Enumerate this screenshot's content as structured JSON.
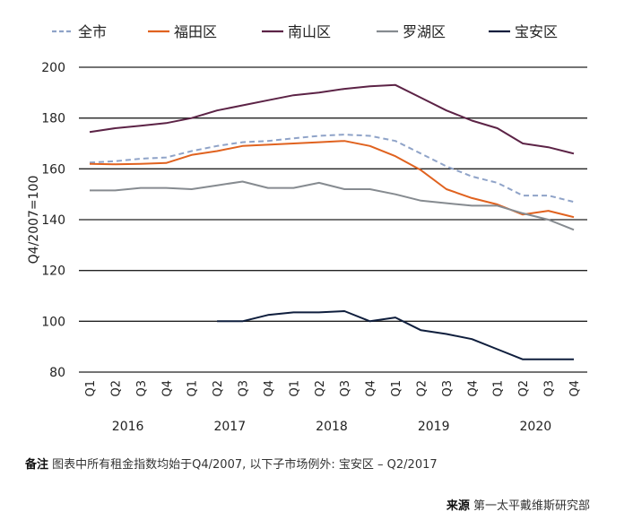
{
  "chart_data": {
    "type": "line",
    "ylabel": "Q4/2007=100",
    "ylim": [
      80,
      200
    ],
    "yticks": [
      "80",
      "100",
      "120",
      "140",
      "160",
      "180",
      "200"
    ],
    "grid": true,
    "legend_placement": "top",
    "quarters": [
      "Q1",
      "Q2",
      "Q3",
      "Q4",
      "Q1",
      "Q2",
      "Q3",
      "Q4",
      "Q1",
      "Q2",
      "Q3",
      "Q4",
      "Q1",
      "Q2",
      "Q3",
      "Q4",
      "Q1",
      "Q2",
      "Q3",
      "Q4"
    ],
    "years": [
      "2016",
      "2017",
      "2018",
      "2019",
      "2020"
    ],
    "series": [
      {
        "name": "全市",
        "color": "#8fa3c8",
        "dashed": true,
        "values": [
          162.5,
          163,
          164,
          164.5,
          167,
          169,
          170.5,
          171,
          172,
          173,
          173.5,
          173,
          171,
          166,
          161,
          157,
          154.5,
          149.5,
          149.5,
          147
        ]
      },
      {
        "name": "福田区",
        "color": "#e0621f",
        "dashed": false,
        "values": [
          162,
          161.8,
          162,
          162.3,
          165.5,
          167,
          169,
          169.5,
          170,
          170.5,
          171,
          169,
          165,
          159.5,
          152,
          148.5,
          146,
          142,
          143.5,
          141
        ]
      },
      {
        "name": "南山区",
        "color": "#5c2346",
        "dashed": false,
        "values": [
          174.5,
          176,
          177,
          178,
          180,
          183,
          185,
          187,
          189,
          190,
          191.5,
          192.5,
          193,
          188,
          183,
          179,
          176,
          170,
          168.5,
          166
        ]
      },
      {
        "name": "罗湖区",
        "color": "#868b90",
        "dashed": false,
        "values": [
          151.5,
          151.5,
          152.5,
          152.5,
          152,
          153.5,
          155,
          152.5,
          152.5,
          154.5,
          152,
          152,
          150,
          147.5,
          146.5,
          145.5,
          145.5,
          142.5,
          140,
          136
        ]
      },
      {
        "name": "宝安区",
        "color": "#0f1e3d",
        "dashed": false,
        "values": [
          null,
          null,
          null,
          null,
          null,
          100,
          100,
          102.5,
          103.5,
          103.5,
          104,
          100,
          101.5,
          96.5,
          95,
          93,
          89,
          85,
          85,
          85
        ]
      }
    ]
  },
  "note": {
    "label": "备注",
    "text": "图表中所有租金指数均始于Q4/2007, 以下子市场例外: 宝安区 – Q2/2017"
  },
  "source": {
    "label": "来源",
    "text": "第一太平戴维斯研究部"
  }
}
